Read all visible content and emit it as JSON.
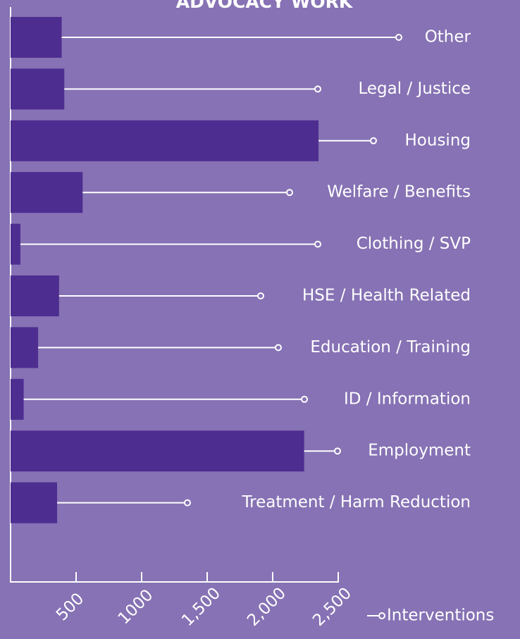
{
  "chart_data": {
    "type": "hbar",
    "title": "ADVOCACY WORK",
    "categories": [
      "Other",
      "Legal / Justice",
      "Housing",
      "Welfare / Benefits",
      "Clothing / SVP",
      "HSE / Health Related",
      "Education / Training",
      "ID / Information",
      "Employment",
      "Treatment / Harm Reduction"
    ],
    "values": [
      390,
      410,
      2350,
      550,
      75,
      370,
      210,
      100,
      2240,
      355
    ],
    "color": "#4e2d91",
    "xlim": [
      0,
      2500
    ],
    "xticks": [
      500,
      1000,
      {
        "value": 1500,
        "label": "1,500"
      },
      {
        "value": 2000,
        "label": "2,000"
      },
      {
        "value": 2500,
        "label": "2,500"
      }
    ],
    "xlabel": "Interventions"
  }
}
